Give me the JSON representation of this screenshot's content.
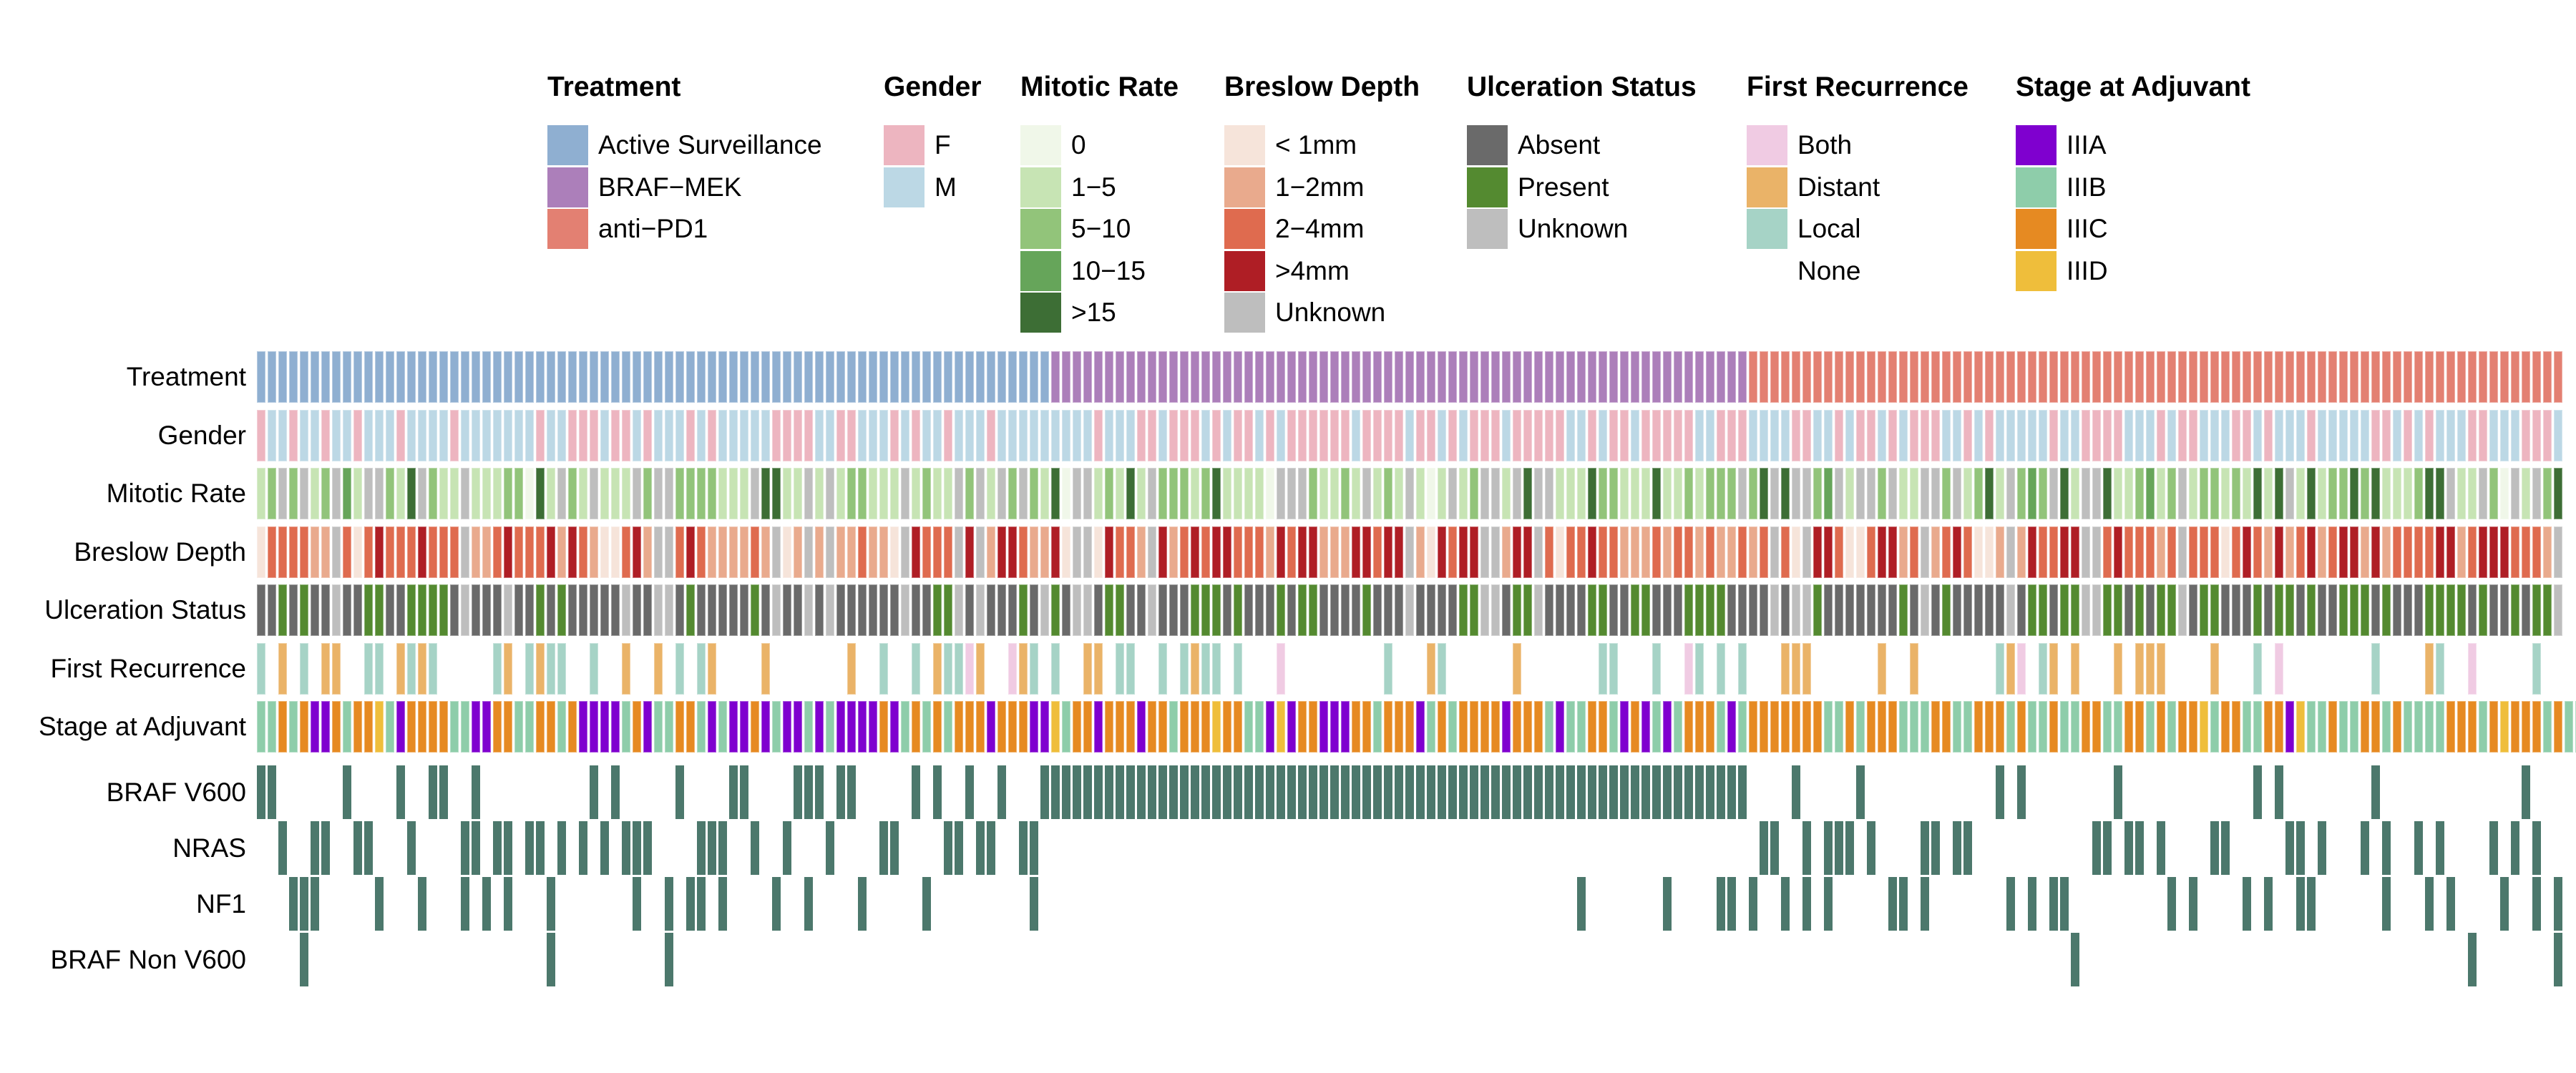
{
  "chart_data": {
    "type": "heatmap",
    "mutation_color": "#4C786C",
    "legends": [
      {
        "key": "treatment",
        "title": "Treatment",
        "items": [
          {
            "code": "S",
            "label": "Active Surveillance",
            "color": "#8FAFD1"
          },
          {
            "code": "B",
            "label": "BRAF−MEK",
            "color": "#AC7FBA"
          },
          {
            "code": "P",
            "label": "anti−PD1",
            "color": "#E38072"
          }
        ]
      },
      {
        "key": "gender",
        "title": "Gender",
        "items": [
          {
            "code": "F",
            "label": "F",
            "color": "#EDB5C0"
          },
          {
            "code": "M",
            "label": "M",
            "color": "#BCD8E5"
          }
        ]
      },
      {
        "key": "mitotic",
        "title": "Mitotic Rate",
        "items": [
          {
            "code": "0",
            "label": "0",
            "color": "#F0F7E9"
          },
          {
            "code": "1",
            "label": "1−5",
            "color": "#C7E4B4"
          },
          {
            "code": "2",
            "label": "5−10",
            "color": "#92C47A"
          },
          {
            "code": "3",
            "label": "10−15",
            "color": "#66A55A"
          },
          {
            "code": "4",
            "label": ">15",
            "color": "#3D6E35"
          }
        ],
        "unknown_color": "#BEBEBE"
      },
      {
        "key": "breslow",
        "title": "Breslow Depth",
        "items": [
          {
            "code": "0",
            "label": "< 1mm",
            "color": "#F6E4DA"
          },
          {
            "code": "1",
            "label": "1−2mm",
            "color": "#E9AA8D"
          },
          {
            "code": "2",
            "label": "2−4mm",
            "color": "#DF6B4F"
          },
          {
            "code": "3",
            "label": ">4mm",
            "color": "#AF1E25"
          },
          {
            "code": "U",
            "label": "Unknown",
            "color": "#BEBEBE"
          }
        ]
      },
      {
        "key": "ulceration",
        "title": "Ulceration Status",
        "items": [
          {
            "code": "A",
            "label": "Absent",
            "color": "#6A6A6A"
          },
          {
            "code": "P",
            "label": "Present",
            "color": "#548A30"
          },
          {
            "code": "U",
            "label": "Unknown",
            "color": "#BEBEBE"
          }
        ]
      },
      {
        "key": "recurrence",
        "title": "First Recurrence",
        "items": [
          {
            "code": "B",
            "label": "Both",
            "color": "#F0CBE3"
          },
          {
            "code": "D",
            "label": "Distant",
            "color": "#EAB368"
          },
          {
            "code": "L",
            "label": "Local",
            "color": "#A6D3C6"
          },
          {
            "code": "N",
            "label": "None",
            "color": "#FFFFFF"
          }
        ]
      },
      {
        "key": "stage",
        "title": "Stage at Adjuvant",
        "items": [
          {
            "code": "1",
            "label": "IIIA",
            "color": "#7F00CF"
          },
          {
            "code": "2",
            "label": "IIIB",
            "color": "#8ECDAA"
          },
          {
            "code": "3",
            "label": "IIIC",
            "color": "#E68A22"
          },
          {
            "code": "4",
            "label": "IIID",
            "color": "#EFBE3B"
          }
        ]
      }
    ],
    "annotation_rows": [
      {
        "label": "Treatment",
        "legend": "treatment",
        "runs": [
          {
            "code": "S",
            "count": 74
          },
          {
            "code": "B",
            "count": 65
          },
          {
            "code": "P",
            "count": 76
          }
        ]
      },
      {
        "label": "Gender",
        "legend": "gender",
        "values": "FMMFMMFMMFMMMFMMMMFMMMMMMMFMMFFFMFFMFMMMFMFMMMMMFFFFMMFFMMMFMFMMFMMMFMMMMMMMMMFMMMFFMFFFMFMFFMFMFFFFFFMFFFFMFFMFMFFFMFFFFFMMFMFFMFFFFFMMFFFMMMMFFMMFMFFMFMFFFMMFMFMMMMMFMMFFFFMMMFMFFMMMFFMFMMMFMMMMMFFMFMFMMMFFMMMFFFM"
      },
      {
        "label": "Mitotic Rate",
        "legend": "mitotic",
        "values": "12U2U12U31UU214U211U11122041U21U111U2UU2222111U4411U1U122111U1211U2U1U2U2140UU12141U22212411110UUU21121U121U101U12UU1U4UU11142211141121222U24U4UU23U1UU2U11UU2U1241U232U41UU4112312U122121414U14122424111244U11U20U1U24"
      },
      {
        "label": "Breslow Depth",
        "legend": "breslow",
        "values": "0222211U20232223222U11232223132100231UU232111121U01U1U112110U3222U3U13321130UU03221U31232332221323311133233U103233UU133U202232211121221211212U20U3320023312U1232001U132233UU2322212U2220232131231233131222233123332221U"
      },
      {
        "label": "Ulceration Status",
        "legend": "ulceration",
        "values": "AAPAPAAUAAPPAAPPPPAUAAAUAAPAPAAAAAUAAUUAPAAAAAPAUAAUAUAAAAAAUAAPPUAUAAAPAUPAUUAPPAAUAAAPPPAPAAAPAPPAAAAPAAAUAAAAPPUUAPPUAAAAPPAAPPAAAPPPPAAAAUAUUPAAAAAAAPAUAPAAAAAUAPPAPPUUPPAPAPPUAPPAAAPAPPAPAAPPPAPAAAPPPPAPAAPAPPU"
      },
      {
        "label": "First Recurrence",
        "legend": "recurrence",
        "values": "LNDNLNDDNNLLNDLDLNNNNNLDNLDLLNNLNNDNNDNLNLDNNNNDNNNNNNNDNNLNNLNDLLBDNNBDLNLNNDDNLLNNLNLDLLNLNNNBNNNNNNNNNLNNNDLNNNNNNDNNNNNNNLLNNNLNNBLNLNLNNNDDDNNNNNNDNNDNNNNNNNLDBNLDNDNNNDNDDDNNNNDNNNLNBNNNNNNNNLNNNNDLNNBNNNNNLNN"
      },
      {
        "label": "Stage at Adjuvant",
        "legend": "stage",
        "values": "2232311323342133332211332233231111231223321211312112121111312323233313331142331333133233343322141331113323331232333313332122332131212333212333333322323332223322333232232233223323233423322331422322332322223332343332322"
      }
    ],
    "mutation_rows": [
      {
        "label": "BRAF V600",
        "mutated": [
          0,
          1,
          8,
          13,
          16,
          17,
          20,
          31,
          33,
          39,
          44,
          45,
          50,
          51,
          52,
          54,
          55,
          61,
          63,
          66,
          69,
          73,
          74,
          75,
          76,
          77,
          78,
          79,
          80,
          81,
          82,
          83,
          84,
          85,
          86,
          87,
          88,
          89,
          90,
          91,
          92,
          93,
          94,
          95,
          96,
          97,
          98,
          99,
          100,
          101,
          102,
          103,
          104,
          105,
          106,
          107,
          108,
          109,
          110,
          111,
          112,
          113,
          114,
          115,
          116,
          117,
          118,
          119,
          120,
          121,
          122,
          123,
          124,
          125,
          126,
          127,
          128,
          129,
          130,
          131,
          132,
          133,
          134,
          135,
          136,
          137,
          138,
          143,
          149,
          162,
          164,
          173,
          186,
          188,
          197,
          211
        ]
      },
      {
        "label": "NRAS",
        "mutated": [
          2,
          5,
          6,
          9,
          10,
          14,
          19,
          20,
          22,
          23,
          25,
          26,
          28,
          30,
          32,
          34,
          35,
          36,
          41,
          42,
          43,
          46,
          49,
          53,
          58,
          59,
          64,
          65,
          67,
          68,
          71,
          72,
          140,
          141,
          144,
          146,
          147,
          148,
          150,
          155,
          156,
          158,
          159,
          171,
          172,
          174,
          175,
          177,
          182,
          183,
          189,
          190,
          192,
          196,
          198,
          201,
          203,
          208,
          210,
          212
        ]
      },
      {
        "label": "NF1",
        "mutated": [
          3,
          4,
          5,
          11,
          15,
          19,
          21,
          23,
          27,
          35,
          38,
          40,
          41,
          43,
          48,
          51,
          56,
          62,
          72,
          123,
          131,
          136,
          137,
          139,
          142,
          144,
          146,
          152,
          153,
          155,
          163,
          165,
          167,
          168,
          178,
          180,
          185,
          187,
          190,
          191,
          198,
          202,
          204,
          209,
          212,
          214
        ]
      },
      {
        "label": "BRAF Non V600",
        "mutated": [
          4,
          27,
          38,
          169,
          206,
          214
        ]
      }
    ]
  }
}
